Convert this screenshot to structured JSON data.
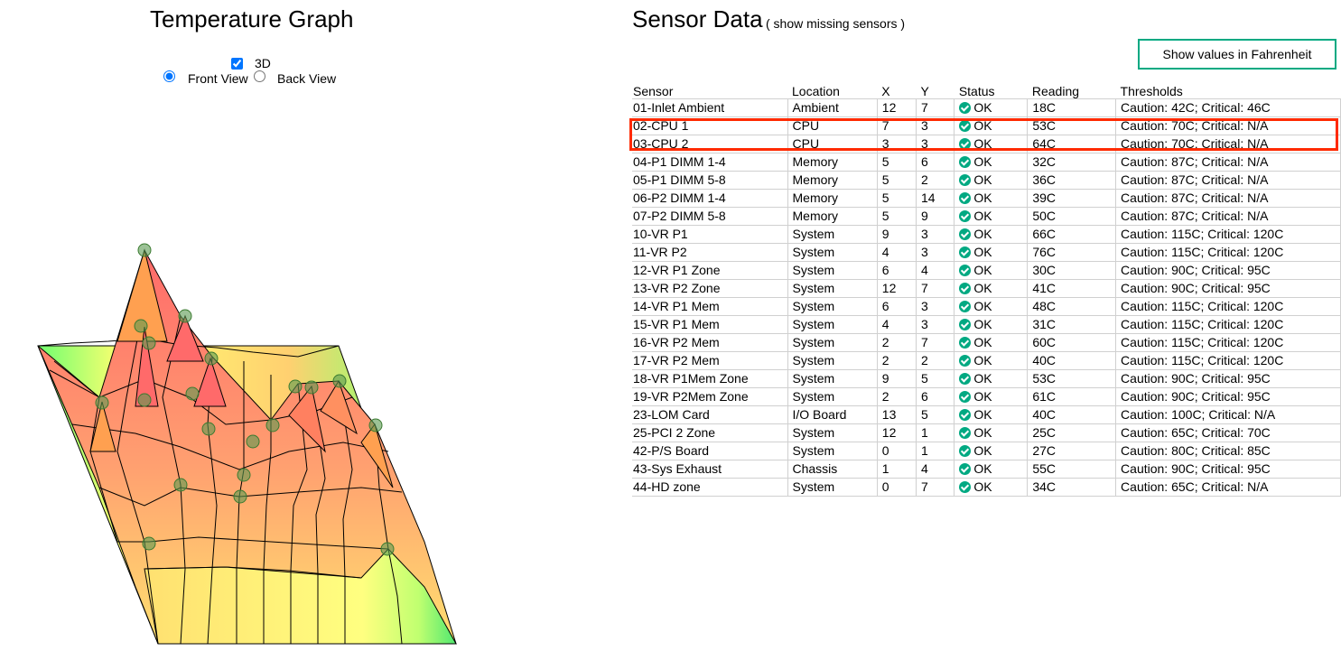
{
  "graph": {
    "title": "Temperature Graph",
    "checkbox_3d_label": "3D",
    "checkbox_3d_checked": true,
    "front_view_label": "Front View",
    "back_view_label": "Back View",
    "selected_view": "Front View"
  },
  "sensor_panel": {
    "title": "Sensor Data",
    "missing_link": "( show missing sensors )",
    "fahrenheit_button": "Show values in Fahrenheit",
    "columns": [
      "Sensor",
      "Location",
      "X",
      "Y",
      "Status",
      "Reading",
      "Thresholds"
    ],
    "highlighted_rows": [
      "02-CPU 1",
      "03-CPU 2"
    ],
    "rows": [
      {
        "sensor": "01-Inlet Ambient",
        "location": "Ambient",
        "x": "12",
        "y": "7",
        "status": "OK",
        "reading": "18C",
        "thresholds": "Caution: 42C; Critical: 46C"
      },
      {
        "sensor": "02-CPU 1",
        "location": "CPU",
        "x": "7",
        "y": "3",
        "status": "OK",
        "reading": "53C",
        "thresholds": "Caution: 70C; Critical: N/A"
      },
      {
        "sensor": "03-CPU 2",
        "location": "CPU",
        "x": "3",
        "y": "3",
        "status": "OK",
        "reading": "64C",
        "thresholds": "Caution: 70C; Critical: N/A"
      },
      {
        "sensor": "04-P1 DIMM 1-4",
        "location": "Memory",
        "x": "5",
        "y": "6",
        "status": "OK",
        "reading": "32C",
        "thresholds": "Caution: 87C; Critical: N/A"
      },
      {
        "sensor": "05-P1 DIMM 5-8",
        "location": "Memory",
        "x": "5",
        "y": "2",
        "status": "OK",
        "reading": "36C",
        "thresholds": "Caution: 87C; Critical: N/A"
      },
      {
        "sensor": "06-P2 DIMM 1-4",
        "location": "Memory",
        "x": "5",
        "y": "14",
        "status": "OK",
        "reading": "39C",
        "thresholds": "Caution: 87C; Critical: N/A"
      },
      {
        "sensor": "07-P2 DIMM 5-8",
        "location": "Memory",
        "x": "5",
        "y": "9",
        "status": "OK",
        "reading": "50C",
        "thresholds": "Caution: 87C; Critical: N/A"
      },
      {
        "sensor": "10-VR P1",
        "location": "System",
        "x": "9",
        "y": "3",
        "status": "OK",
        "reading": "66C",
        "thresholds": "Caution: 115C; Critical: 120C"
      },
      {
        "sensor": "11-VR P2",
        "location": "System",
        "x": "4",
        "y": "3",
        "status": "OK",
        "reading": "76C",
        "thresholds": "Caution: 115C; Critical: 120C"
      },
      {
        "sensor": "12-VR P1 Zone",
        "location": "System",
        "x": "6",
        "y": "4",
        "status": "OK",
        "reading": "30C",
        "thresholds": "Caution: 90C; Critical: 95C"
      },
      {
        "sensor": "13-VR P2 Zone",
        "location": "System",
        "x": "12",
        "y": "7",
        "status": "OK",
        "reading": "41C",
        "thresholds": "Caution: 90C; Critical: 95C"
      },
      {
        "sensor": "14-VR P1 Mem",
        "location": "System",
        "x": "6",
        "y": "3",
        "status": "OK",
        "reading": "48C",
        "thresholds": "Caution: 115C; Critical: 120C"
      },
      {
        "sensor": "15-VR P1 Mem",
        "location": "System",
        "x": "4",
        "y": "3",
        "status": "OK",
        "reading": "31C",
        "thresholds": "Caution: 115C; Critical: 120C"
      },
      {
        "sensor": "16-VR P2 Mem",
        "location": "System",
        "x": "2",
        "y": "7",
        "status": "OK",
        "reading": "60C",
        "thresholds": "Caution: 115C; Critical: 120C"
      },
      {
        "sensor": "17-VR P2 Mem",
        "location": "System",
        "x": "2",
        "y": "2",
        "status": "OK",
        "reading": "40C",
        "thresholds": "Caution: 115C; Critical: 120C"
      },
      {
        "sensor": "18-VR P1Mem Zone",
        "location": "System",
        "x": "9",
        "y": "5",
        "status": "OK",
        "reading": "53C",
        "thresholds": "Caution: 90C; Critical: 95C"
      },
      {
        "sensor": "19-VR P2Mem Zone",
        "location": "System",
        "x": "2",
        "y": "6",
        "status": "OK",
        "reading": "61C",
        "thresholds": "Caution: 90C; Critical: 95C"
      },
      {
        "sensor": "23-LOM Card",
        "location": "I/O Board",
        "x": "13",
        "y": "5",
        "status": "OK",
        "reading": "40C",
        "thresholds": "Caution: 100C; Critical: N/A"
      },
      {
        "sensor": "25-PCI 2 Zone",
        "location": "System",
        "x": "12",
        "y": "1",
        "status": "OK",
        "reading": "25C",
        "thresholds": "Caution: 65C; Critical: 70C"
      },
      {
        "sensor": "42-P/S Board",
        "location": "System",
        "x": "0",
        "y": "1",
        "status": "OK",
        "reading": "27C",
        "thresholds": "Caution: 80C; Critical: 85C"
      },
      {
        "sensor": "43-Sys Exhaust",
        "location": "Chassis",
        "x": "1",
        "y": "4",
        "status": "OK",
        "reading": "55C",
        "thresholds": "Caution: 90C; Critical: 95C"
      },
      {
        "sensor": "44-HD zone",
        "location": "System",
        "x": "0",
        "y": "7",
        "status": "OK",
        "reading": "34C",
        "thresholds": "Caution: 65C; Critical: N/A"
      }
    ]
  },
  "colors": {
    "accent": "#01a982",
    "highlight": "#ff2a00",
    "hot": "#ff6a6a",
    "warm": "#ffb060",
    "cool": "#ffff80",
    "cold": "#60ff80"
  }
}
